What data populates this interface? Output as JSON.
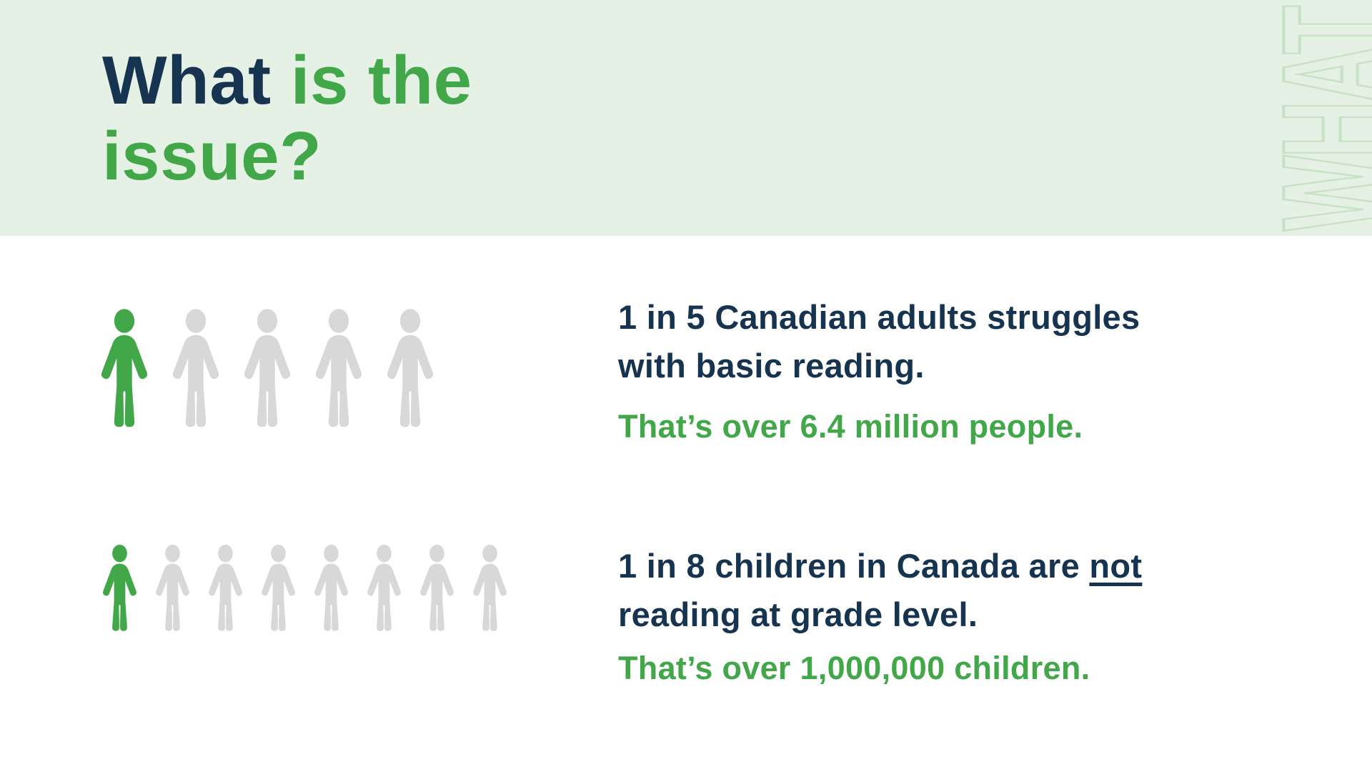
{
  "colors": {
    "navy": "#16334F",
    "green": "#42A749",
    "gray": "#D8D8D8",
    "banner_bg": "#E4F1E4",
    "watermark_stroke": "#C9E2C6",
    "page_bg": "#FFFFFF"
  },
  "header": {
    "title_line1_navy": "What",
    "title_line1_green": " is the",
    "title_line2_green": "issue?",
    "watermark_text": "WHAT"
  },
  "stat_adults": {
    "headline_line1": "1 in 5 Canadian adults struggles",
    "headline_line2": "with basic reading.",
    "subtext": "That’s over 6.4 million people.",
    "people_total": 5,
    "people_highlighted": 1
  },
  "stat_children": {
    "headline_line1_prefix": "1 in 8 children in Canada are ",
    "headline_line1_underlined": "not",
    "headline_line2": "reading at grade level.",
    "subtext": "That’s over 1,000,000 children.",
    "people_total": 8,
    "people_highlighted": 1
  }
}
